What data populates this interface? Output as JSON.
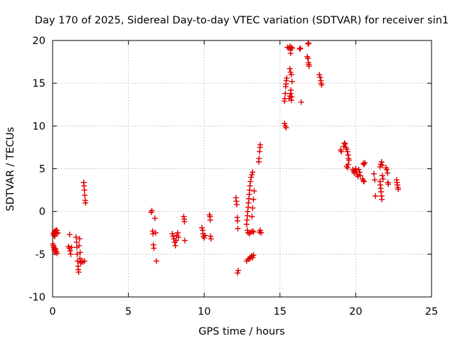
{
  "chart_data": {
    "type": "scatter",
    "title": "Day 170 of 2025, Sidereal Day-to-day VTEC variation (SDTVAR) for receiver sin1",
    "xlabel": "GPS time / hours",
    "ylabel": "SDTVAR / TECUs",
    "xlim": [
      0,
      25
    ],
    "ylim": [
      -10,
      20
    ],
    "xticks": [
      0,
      5,
      10,
      15,
      20,
      25
    ],
    "yticks": [
      -10,
      -5,
      0,
      5,
      10,
      15,
      20
    ],
    "grid": true,
    "marker": "+",
    "color": "#e00000",
    "series": [
      {
        "name": "SDTVAR",
        "points": [
          [
            0.02,
            -3.8
          ],
          [
            0.05,
            -4.0
          ],
          [
            0.08,
            -4.2
          ],
          [
            0.1,
            -4.5
          ],
          [
            0.12,
            -4.3
          ],
          [
            0.15,
            -4.8
          ],
          [
            0.18,
            -4.6
          ],
          [
            0.2,
            -4.4
          ],
          [
            0.25,
            -4.7
          ],
          [
            0.3,
            -4.9
          ],
          [
            0.05,
            -2.6
          ],
          [
            0.08,
            -2.8
          ],
          [
            0.1,
            -2.5
          ],
          [
            0.12,
            -2.3
          ],
          [
            0.15,
            -2.9
          ],
          [
            0.18,
            -2.4
          ],
          [
            0.22,
            -2.2
          ],
          [
            0.25,
            -2.6
          ],
          [
            0.3,
            -2.2
          ],
          [
            0.35,
            -2.5
          ],
          [
            1.05,
            -4.1
          ],
          [
            1.1,
            -4.3
          ],
          [
            1.12,
            -2.7
          ],
          [
            1.15,
            -4.6
          ],
          [
            1.2,
            -5.0
          ],
          [
            1.25,
            -4.2
          ],
          [
            1.55,
            -3.0
          ],
          [
            1.58,
            -3.6
          ],
          [
            1.6,
            -4.2
          ],
          [
            1.62,
            -5.0
          ],
          [
            1.65,
            -5.8
          ],
          [
            1.68,
            -6.4
          ],
          [
            1.7,
            -6.8
          ],
          [
            1.72,
            -7.1
          ],
          [
            1.75,
            -4.0
          ],
          [
            1.78,
            -3.2
          ],
          [
            1.8,
            -5.5
          ],
          [
            1.82,
            -4.8
          ],
          [
            1.85,
            -6.0
          ],
          [
            1.9,
            -5.9
          ],
          [
            2.0,
            -5.9
          ],
          [
            2.1,
            -5.8
          ],
          [
            2.05,
            3.4
          ],
          [
            2.07,
            3.0
          ],
          [
            2.1,
            2.5
          ],
          [
            2.12,
            1.9
          ],
          [
            2.15,
            1.3
          ],
          [
            2.17,
            1.0
          ],
          [
            6.5,
            -0.1
          ],
          [
            6.55,
            0.1
          ],
          [
            6.6,
            -2.3
          ],
          [
            6.62,
            -2.6
          ],
          [
            6.65,
            -3.9
          ],
          [
            6.68,
            -4.3
          ],
          [
            6.75,
            -0.8
          ],
          [
            6.8,
            -2.5
          ],
          [
            6.85,
            -5.8
          ],
          [
            7.9,
            -2.6
          ],
          [
            7.95,
            -2.9
          ],
          [
            8.0,
            -3.2
          ],
          [
            8.05,
            -3.6
          ],
          [
            8.1,
            -4.0
          ],
          [
            8.15,
            -3.4
          ],
          [
            8.2,
            -2.8
          ],
          [
            8.25,
            -2.5
          ],
          [
            8.3,
            -3.0
          ],
          [
            8.65,
            -0.6
          ],
          [
            8.68,
            -0.9
          ],
          [
            8.7,
            -1.2
          ],
          [
            8.72,
            -3.4
          ],
          [
            9.85,
            -1.9
          ],
          [
            9.9,
            -2.2
          ],
          [
            9.92,
            -2.6
          ],
          [
            9.95,
            -2.9
          ],
          [
            10.0,
            -3.1
          ],
          [
            10.05,
            -2.8
          ],
          [
            10.35,
            -0.4
          ],
          [
            10.38,
            -0.6
          ],
          [
            10.4,
            -1.0
          ],
          [
            10.42,
            -2.9
          ],
          [
            10.45,
            -3.2
          ],
          [
            12.1,
            1.6
          ],
          [
            12.12,
            1.2
          ],
          [
            12.15,
            0.8
          ],
          [
            12.18,
            -0.7
          ],
          [
            12.2,
            -1.1
          ],
          [
            12.22,
            -2.0
          ],
          [
            12.25,
            -6.9
          ],
          [
            12.2,
            -7.2
          ],
          [
            12.8,
            -5.8
          ],
          [
            12.9,
            -5.6
          ],
          [
            13.0,
            -5.5
          ],
          [
            13.05,
            -5.4
          ],
          [
            13.1,
            -5.3
          ],
          [
            13.15,
            -5.2
          ],
          [
            13.2,
            -5.4
          ],
          [
            13.25,
            -5.1
          ],
          [
            12.8,
            -1.5
          ],
          [
            12.82,
            -1.0
          ],
          [
            12.85,
            -0.5
          ],
          [
            12.87,
            0.0
          ],
          [
            12.9,
            0.5
          ],
          [
            12.92,
            1.0
          ],
          [
            12.95,
            1.5
          ],
          [
            12.97,
            2.0
          ],
          [
            13.0,
            2.5
          ],
          [
            13.02,
            3.0
          ],
          [
            13.05,
            3.5
          ],
          [
            13.1,
            4.0
          ],
          [
            13.15,
            4.3
          ],
          [
            13.2,
            4.6
          ],
          [
            12.85,
            -2.2
          ],
          [
            12.9,
            -2.5
          ],
          [
            13.0,
            -2.6
          ],
          [
            13.1,
            -2.4
          ],
          [
            13.2,
            -2.3
          ],
          [
            13.25,
            -2.4
          ],
          [
            13.15,
            -0.6
          ],
          [
            13.2,
            0.4
          ],
          [
            13.25,
            1.4
          ],
          [
            13.3,
            2.4
          ],
          [
            13.65,
            -2.4
          ],
          [
            13.7,
            -2.2
          ],
          [
            13.75,
            -2.5
          ],
          [
            13.6,
            5.8
          ],
          [
            13.62,
            6.2
          ],
          [
            13.65,
            7.0
          ],
          [
            13.68,
            7.5
          ],
          [
            13.7,
            7.8
          ],
          [
            15.3,
            12.9
          ],
          [
            15.32,
            13.2
          ],
          [
            15.35,
            13.8
          ],
          [
            15.38,
            14.6
          ],
          [
            15.4,
            14.9
          ],
          [
            15.42,
            15.3
          ],
          [
            15.45,
            15.6
          ],
          [
            15.3,
            10.3
          ],
          [
            15.35,
            10.0
          ],
          [
            15.4,
            9.8
          ],
          [
            15.6,
            13.2
          ],
          [
            15.65,
            13.5
          ],
          [
            15.7,
            13.8
          ],
          [
            15.72,
            14.2
          ],
          [
            15.75,
            13.0
          ],
          [
            15.78,
            13.4
          ],
          [
            15.5,
            19.2
          ],
          [
            15.6,
            19.1
          ],
          [
            15.65,
            19.3
          ],
          [
            15.7,
            18.9
          ],
          [
            15.75,
            19.2
          ],
          [
            15.8,
            19.1
          ],
          [
            15.65,
            16.7
          ],
          [
            15.7,
            16.3
          ],
          [
            15.75,
            16.0
          ],
          [
            15.8,
            15.2
          ],
          [
            15.7,
            18.5
          ],
          [
            16.3,
            19.0
          ],
          [
            16.35,
            19.1
          ],
          [
            16.4,
            12.8
          ],
          [
            16.85,
            19.6
          ],
          [
            16.9,
            19.7
          ],
          [
            16.8,
            18.1
          ],
          [
            16.85,
            17.9
          ],
          [
            16.88,
            17.4
          ],
          [
            16.9,
            17.2
          ],
          [
            16.92,
            17.0
          ],
          [
            17.6,
            16.0
          ],
          [
            17.65,
            15.7
          ],
          [
            17.7,
            15.3
          ],
          [
            17.72,
            15.0
          ],
          [
            17.75,
            14.8
          ],
          [
            19.0,
            7.2
          ],
          [
            19.05,
            7.0
          ],
          [
            19.2,
            7.6
          ],
          [
            19.25,
            8.0
          ],
          [
            19.3,
            7.9
          ],
          [
            19.35,
            7.5
          ],
          [
            19.4,
            7.3
          ],
          [
            19.45,
            7.0
          ],
          [
            19.5,
            6.6
          ],
          [
            19.52,
            6.2
          ],
          [
            19.55,
            6.0
          ],
          [
            19.4,
            5.3
          ],
          [
            19.45,
            5.1
          ],
          [
            19.5,
            5.5
          ],
          [
            19.8,
            4.9
          ],
          [
            19.85,
            4.7
          ],
          [
            19.9,
            4.5
          ],
          [
            19.95,
            4.8
          ],
          [
            20.0,
            5.0
          ],
          [
            20.05,
            4.6
          ],
          [
            20.1,
            4.3
          ],
          [
            20.15,
            4.1
          ],
          [
            20.2,
            4.9
          ],
          [
            20.25,
            4.6
          ],
          [
            20.3,
            4.2
          ],
          [
            20.5,
            5.6
          ],
          [
            20.55,
            5.5
          ],
          [
            20.6,
            5.7
          ],
          [
            20.45,
            3.8
          ],
          [
            20.5,
            3.6
          ],
          [
            20.55,
            3.5
          ],
          [
            21.2,
            4.4
          ],
          [
            21.25,
            3.7
          ],
          [
            21.3,
            1.8
          ],
          [
            21.6,
            5.2
          ],
          [
            21.65,
            5.5
          ],
          [
            21.7,
            5.8
          ],
          [
            21.75,
            5.4
          ],
          [
            21.6,
            3.5
          ],
          [
            21.62,
            3.1
          ],
          [
            21.65,
            2.7
          ],
          [
            21.67,
            2.3
          ],
          [
            21.7,
            1.8
          ],
          [
            21.72,
            1.4
          ],
          [
            21.75,
            4.2
          ],
          [
            21.8,
            3.8
          ],
          [
            22.0,
            5.1
          ],
          [
            22.05,
            4.9
          ],
          [
            22.1,
            4.5
          ],
          [
            22.12,
            3.4
          ],
          [
            22.15,
            3.2
          ],
          [
            22.7,
            3.7
          ],
          [
            22.72,
            3.4
          ],
          [
            22.75,
            3.1
          ],
          [
            22.78,
            2.8
          ],
          [
            22.8,
            2.6
          ]
        ]
      }
    ]
  }
}
